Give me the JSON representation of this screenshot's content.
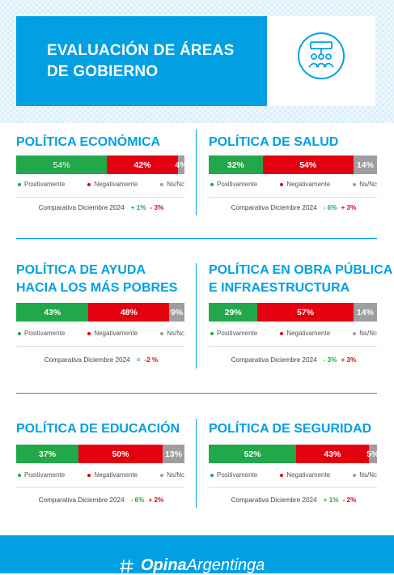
{
  "header": {
    "title_line1": "EVALUACIÓN DE ÁREAS",
    "title_line2": "DE GOBIERNO",
    "icon": "government-people-icon"
  },
  "colors": {
    "blue": "#00a0e3",
    "positive": "#21a84a",
    "negative": "#e3000f",
    "nsnc": "#9e9e9e"
  },
  "legend": {
    "positive": "Positivamente",
    "negative": "Negativamente",
    "nsnc": "Ns/Nc"
  },
  "comparison_label": "Comparativa Diciembre 2024",
  "chart_data": [
    {
      "type": "bar",
      "stacked": true,
      "title_lines": [
        "POLÍTICA ECONÓMICA"
      ],
      "segments": [
        {
          "name": "Positivamente",
          "value": 54,
          "label": "54%"
        },
        {
          "name": "Negativamente",
          "value": 42,
          "label": "42%"
        },
        {
          "name": "Ns/Nc",
          "value": 4,
          "label": "4%"
        }
      ],
      "comparison": {
        "positive": "+ 1%",
        "negative": "- 3%"
      }
    },
    {
      "type": "bar",
      "stacked": true,
      "title_lines": [
        "POLÍTICA DE SALUD"
      ],
      "segments": [
        {
          "name": "Positivamente",
          "value": 32,
          "label": "32%"
        },
        {
          "name": "Negativamente",
          "value": 54,
          "label": "54%"
        },
        {
          "name": "Ns/Nc",
          "value": 14,
          "label": "14%"
        }
      ],
      "comparison": {
        "positive": "- 6%",
        "negative": "+ 3%"
      }
    },
    {
      "type": "bar",
      "stacked": true,
      "title_lines": [
        "POLÍTICA DE AYUDA",
        "HACIA LOS MÁS POBRES"
      ],
      "segments": [
        {
          "name": "Positivamente",
          "value": 43,
          "label": "43%"
        },
        {
          "name": "Negativamente",
          "value": 48,
          "label": "48%"
        },
        {
          "name": "Ns/Nc",
          "value": 9,
          "label": "9%"
        }
      ],
      "comparison": {
        "positive": "=",
        "negative": "-2 %"
      }
    },
    {
      "type": "bar",
      "stacked": true,
      "title_lines": [
        "POLÍTICA EN OBRA PÚBLICA",
        "E INFRAESTRUCTURA"
      ],
      "segments": [
        {
          "name": "Positivamente",
          "value": 29,
          "label": "29%"
        },
        {
          "name": "Negativamente",
          "value": 57,
          "label": "57%"
        },
        {
          "name": "Ns/Nc",
          "value": 14,
          "label": "14%"
        }
      ],
      "comparison": {
        "positive": "- 3%",
        "negative": "+ 3%"
      }
    },
    {
      "type": "bar",
      "stacked": true,
      "title_lines": [
        "POLÍTICA DE EDUCACIÓN"
      ],
      "segments": [
        {
          "name": "Positivamente",
          "value": 37,
          "label": "37%"
        },
        {
          "name": "Negativamente",
          "value": 50,
          "label": "50%"
        },
        {
          "name": "Ns/Nc",
          "value": 13,
          "label": "13%"
        }
      ],
      "comparison": {
        "positive": "- 6%",
        "negative": "+ 2%"
      }
    },
    {
      "type": "bar",
      "stacked": true,
      "title_lines": [
        "POLÍTICA DE SEGURIDAD"
      ],
      "segments": [
        {
          "name": "Positivamente",
          "value": 52,
          "label": "52%"
        },
        {
          "name": "Negativamente",
          "value": 43,
          "label": "43%"
        },
        {
          "name": "Ns/Nc",
          "value": 5,
          "label": "5%"
        }
      ],
      "comparison": {
        "positive": "+ 1%",
        "negative": "- 2%"
      }
    }
  ],
  "footer": {
    "brand_bold": "Opina",
    "brand_regular": "Argentinga",
    "logo_icon": "opina-logo-icon"
  }
}
